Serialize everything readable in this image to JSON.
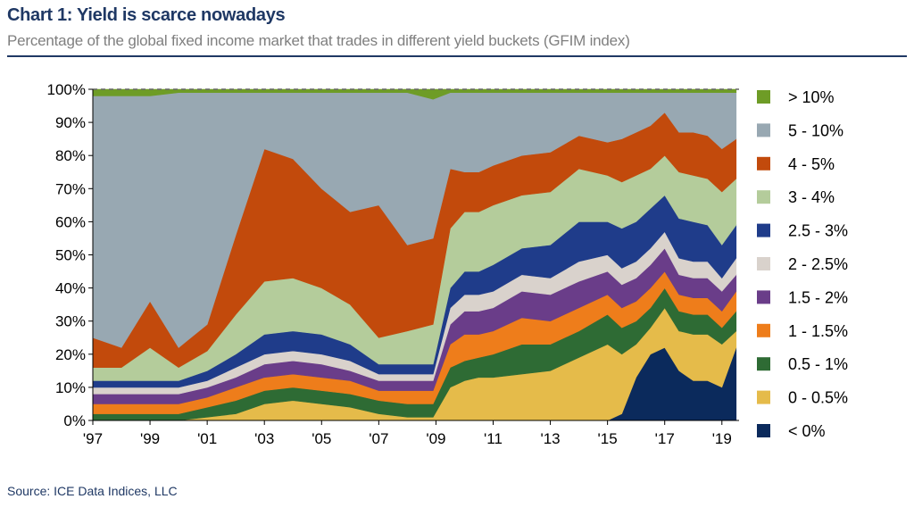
{
  "header": {
    "title": "Chart 1: Yield is scarce nowadays",
    "subtitle": "Percentage of the global fixed income market that trades in different yield buckets (GFIM index)"
  },
  "footer": {
    "source": "Source:  ICE Data Indices, LLC"
  },
  "chart_data": {
    "type": "area",
    "stacked": true,
    "y_format": "percent",
    "ylim": [
      0,
      100
    ],
    "y_ticks": [
      "0%",
      "10%",
      "20%",
      "30%",
      "40%",
      "50%",
      "60%",
      "70%",
      "80%",
      "90%",
      "100%"
    ],
    "xlim": [
      1997,
      2019.6
    ],
    "x_ticks": [
      {
        "value": 1997,
        "label": "'97"
      },
      {
        "value": 1999,
        "label": "'99"
      },
      {
        "value": 2001,
        "label": "'01"
      },
      {
        "value": 2003,
        "label": "'03"
      },
      {
        "value": 2005,
        "label": "'05"
      },
      {
        "value": 2007,
        "label": "'07"
      },
      {
        "value": 2009,
        "label": "'09"
      },
      {
        "value": 2011,
        "label": "'11"
      },
      {
        "value": 2013,
        "label": "'13"
      },
      {
        "value": 2015,
        "label": "'15"
      },
      {
        "value": 2017,
        "label": "'17"
      },
      {
        "value": 2019,
        "label": "'19"
      }
    ],
    "legend_position": "right",
    "legend_order": [
      "> 10%",
      "5 - 10%",
      "4 - 5%",
      "3 - 4%",
      "2.5 - 3%",
      "2 - 2.5%",
      "1.5 - 2%",
      "1 - 1.5%",
      "0.5 - 1%",
      "0 - 0.5%",
      "< 0%"
    ],
    "x": [
      1997.0,
      1998.0,
      1999.0,
      2000.0,
      2001.0,
      2002.0,
      2003.0,
      2004.0,
      2005.0,
      2006.0,
      2007.0,
      2008.0,
      2008.9,
      2009.5,
      2010.0,
      2010.5,
      2011.0,
      2012.0,
      2013.0,
      2014.0,
      2015.0,
      2015.5,
      2016.0,
      2016.5,
      2017.0,
      2017.5,
      2018.0,
      2018.5,
      2019.0,
      2019.5
    ],
    "series": [
      {
        "name": "< 0%",
        "color": "#0b2a5c",
        "values": [
          0,
          0,
          0,
          0,
          0,
          0,
          0,
          0,
          0,
          0,
          0,
          0,
          0,
          0,
          0,
          0,
          0,
          0,
          0,
          0,
          0,
          2,
          13,
          20,
          22,
          15,
          12,
          12,
          10,
          22
        ]
      },
      {
        "name": "0 - 0.5%",
        "color": "#e5bb4a",
        "values": [
          0,
          0,
          0,
          0,
          1,
          2,
          5,
          6,
          5,
          4,
          2,
          1,
          1,
          10,
          12,
          13,
          13,
          14,
          15,
          19,
          23,
          18,
          10,
          8,
          12,
          12,
          14,
          14,
          13,
          5
        ]
      },
      {
        "name": "0.5 - 1%",
        "color": "#2e6b34",
        "values": [
          2,
          2,
          2,
          2,
          3,
          4,
          4,
          4,
          4,
          4,
          4,
          4,
          4,
          6,
          6,
          6,
          7,
          9,
          8,
          8,
          9,
          8,
          7,
          6,
          6,
          6,
          6,
          6,
          5,
          6
        ]
      },
      {
        "name": "1 - 1.5%",
        "color": "#ee7d1b",
        "values": [
          3,
          3,
          3,
          3,
          3,
          4,
          4,
          4,
          4,
          4,
          3,
          4,
          4,
          7,
          8,
          7,
          7,
          8,
          7,
          7,
          6,
          6,
          6,
          6,
          5,
          5,
          5,
          5,
          5,
          6
        ]
      },
      {
        "name": "1.5 - 2%",
        "color": "#6a3d89",
        "values": [
          3,
          3,
          3,
          3,
          3,
          3,
          4,
          4,
          4,
          3,
          3,
          3,
          3,
          6,
          7,
          7,
          7,
          8,
          8,
          8,
          7,
          7,
          7,
          7,
          7,
          6,
          6,
          6,
          6,
          5
        ]
      },
      {
        "name": "2 - 2.5%",
        "color": "#d9d2cc",
        "values": [
          2,
          2,
          2,
          2,
          2,
          3,
          3,
          3,
          3,
          3,
          2,
          2,
          2,
          5,
          5,
          5,
          5,
          5,
          5,
          6,
          5,
          5,
          5,
          5,
          5,
          5,
          5,
          5,
          4,
          5
        ]
      },
      {
        "name": "2.5 - 3%",
        "color": "#1f3c8a",
        "values": [
          2,
          2,
          2,
          2,
          3,
          4,
          6,
          6,
          6,
          5,
          3,
          3,
          3,
          6,
          7,
          7,
          8,
          8,
          10,
          12,
          10,
          12,
          12,
          12,
          11,
          12,
          12,
          11,
          10,
          10
        ]
      },
      {
        "name": "3 - 4%",
        "color": "#b4cc9b",
        "values": [
          4,
          4,
          10,
          4,
          6,
          12,
          16,
          16,
          14,
          12,
          8,
          10,
          12,
          18,
          18,
          18,
          18,
          16,
          16,
          16,
          14,
          14,
          14,
          12,
          12,
          14,
          14,
          14,
          16,
          14
        ]
      },
      {
        "name": "4 - 5%",
        "color": "#c24a0c",
        "values": [
          9,
          6,
          14,
          6,
          8,
          24,
          40,
          36,
          30,
          28,
          40,
          26,
          26,
          18,
          12,
          12,
          12,
          12,
          12,
          10,
          10,
          13,
          13,
          13,
          13,
          12,
          13,
          13,
          13,
          12
        ]
      },
      {
        "name": "5 - 10%",
        "color": "#98a8b2",
        "values": [
          73,
          76,
          62,
          77,
          70,
          43,
          17,
          20,
          29,
          36,
          34,
          46,
          42,
          23,
          24,
          24,
          22,
          19,
          18,
          13,
          15,
          14,
          12,
          10,
          6,
          12,
          12,
          13,
          17,
          14
        ]
      },
      {
        "name": "> 10%",
        "color": "#6e9c26",
        "values": [
          2,
          2,
          2,
          1,
          1,
          1,
          1,
          1,
          1,
          1,
          1,
          1,
          3,
          1,
          1,
          1,
          1,
          1,
          1,
          1,
          1,
          1,
          1,
          1,
          1,
          1,
          1,
          1,
          1,
          1
        ]
      }
    ]
  }
}
